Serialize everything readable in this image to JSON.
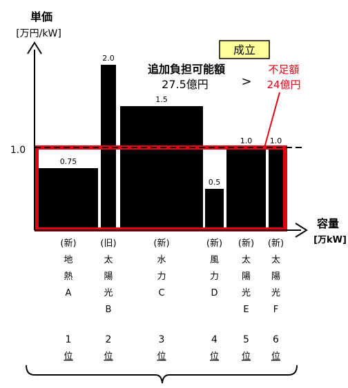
{
  "chart_data": {
    "type": "bar",
    "y_axis_label_1": "単価",
    "y_axis_label_2": "[万円/kW]",
    "x_axis_label_1": "容量",
    "x_axis_label_2": "[万kW]",
    "ref_line_value": 1.0,
    "ref_line_label": "1.0",
    "ylim": [
      0,
      2.45
    ],
    "categories": [
      {
        "lines": [
          "(新)",
          "地",
          "熱",
          "A"
        ],
        "rank": "1",
        "rank_suffix": "位",
        "value": 0.75,
        "label": "0.75"
      },
      {
        "lines": [
          "(旧)",
          "太",
          "陽",
          "光",
          "B"
        ],
        "rank": "2",
        "rank_suffix": "位",
        "value": 2.0,
        "label": "2.0"
      },
      {
        "lines": [
          "(新)",
          "水",
          "力",
          "C"
        ],
        "rank": "3",
        "rank_suffix": "位",
        "value": 1.5,
        "label": "1.5"
      },
      {
        "lines": [
          "(新)",
          "風",
          "力",
          "D"
        ],
        "rank": "4",
        "rank_suffix": "位",
        "value": 0.5,
        "label": "0.5"
      },
      {
        "lines": [
          "(新)",
          "太",
          "陽",
          "光",
          "E"
        ],
        "rank": "5",
        "rank_suffix": "位",
        "value": 1.0,
        "label": "1.0"
      },
      {
        "lines": [
          "(新)",
          "太",
          "陽",
          "光",
          "F"
        ],
        "rank": "6",
        "rank_suffix": "位",
        "value": 1.0,
        "label": "1.0"
      }
    ],
    "badge_text": "成立",
    "annotation_main_line1": "追加負担可能額",
    "annotation_main_line2": "27.5億円",
    "comparison_symbol": ">",
    "annotation_red_line1": "不足額",
    "annotation_red_line2": "24億円",
    "colors": {
      "bar": "#000000",
      "highlight": "#e60012",
      "badge_bg": "#ffff99"
    }
  }
}
